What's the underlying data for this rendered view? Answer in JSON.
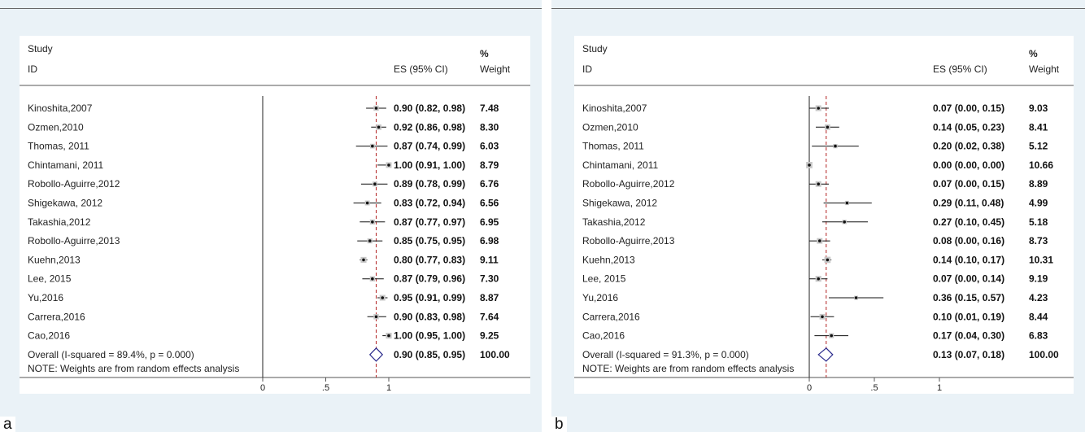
{
  "chart_data": [
    {
      "type": "forest",
      "panel_label": "a",
      "header": {
        "study": "Study",
        "id": "ID",
        "es": "ES (95% CI)",
        "pct": "%",
        "weight": "Weight"
      },
      "note": "NOTE: Weights are from random effects analysis",
      "x_ticks": [
        "0",
        ".5",
        "1"
      ],
      "xlim": [
        -0.6,
        1.0
      ],
      "reference_x": 0,
      "pooled_line_x": 0.9,
      "studies": [
        {
          "label": "Kinoshita,2007",
          "es": 0.9,
          "lo": 0.82,
          "hi": 0.98,
          "text": "0.90 (0.82, 0.98)",
          "weight": "7.48"
        },
        {
          "label": "Ozmen,2010",
          "es": 0.92,
          "lo": 0.86,
          "hi": 0.98,
          "text": "0.92 (0.86, 0.98)",
          "weight": "8.30"
        },
        {
          "label": "Thomas, 2011",
          "es": 0.87,
          "lo": 0.74,
          "hi": 0.99,
          "text": "0.87 (0.74, 0.99)",
          "weight": "6.03"
        },
        {
          "label": "Chintamani, 2011",
          "es": 1.0,
          "lo": 0.91,
          "hi": 1.0,
          "text": "1.00 (0.91, 1.00)",
          "weight": "8.79"
        },
        {
          "label": "Robollo-Aguirre,2012",
          "es": 0.89,
          "lo": 0.78,
          "hi": 0.99,
          "text": "0.89 (0.78, 0.99)",
          "weight": "6.76"
        },
        {
          "label": "Shigekawa, 2012",
          "es": 0.83,
          "lo": 0.72,
          "hi": 0.94,
          "text": "0.83 (0.72, 0.94)",
          "weight": "6.56"
        },
        {
          "label": "Takashia,2012",
          "es": 0.87,
          "lo": 0.77,
          "hi": 0.97,
          "text": "0.87 (0.77, 0.97)",
          "weight": "6.95"
        },
        {
          "label": "Robollo-Aguirre,2013",
          "es": 0.85,
          "lo": 0.75,
          "hi": 0.95,
          "text": "0.85 (0.75, 0.95)",
          "weight": "6.98"
        },
        {
          "label": "Kuehn,2013",
          "es": 0.8,
          "lo": 0.77,
          "hi": 0.83,
          "text": "0.80 (0.77, 0.83)",
          "weight": "9.11"
        },
        {
          "label": "Lee, 2015",
          "es": 0.87,
          "lo": 0.79,
          "hi": 0.96,
          "text": "0.87 (0.79, 0.96)",
          "weight": "7.30"
        },
        {
          "label": "Yu,2016",
          "es": 0.95,
          "lo": 0.91,
          "hi": 0.99,
          "text": "0.95 (0.91, 0.99)",
          "weight": "8.87"
        },
        {
          "label": "Carrera,2016",
          "es": 0.9,
          "lo": 0.83,
          "hi": 0.98,
          "text": "0.90 (0.83, 0.98)",
          "weight": "7.64"
        },
        {
          "label": "Cao,2016",
          "es": 1.0,
          "lo": 0.95,
          "hi": 1.0,
          "text": "1.00 (0.95, 1.00)",
          "weight": "9.25"
        }
      ],
      "overall": {
        "label": "Overall  (I-squared = 89.4%, p = 0.000)",
        "es": 0.9,
        "lo": 0.85,
        "hi": 0.95,
        "text": "0.90 (0.85, 0.95)",
        "weight": "100.00"
      }
    },
    {
      "type": "forest",
      "panel_label": "b",
      "header": {
        "study": "Study",
        "id": "ID",
        "es": "ES (95% CI)",
        "pct": "%",
        "weight": "Weight"
      },
      "note": "NOTE: Weights are from random effects analysis",
      "x_ticks": [
        "0",
        ".5",
        "1"
      ],
      "xlim": [
        -0.6,
        1.0
      ],
      "reference_x": 0,
      "pooled_line_x": 0.13,
      "studies": [
        {
          "label": "Kinoshita,2007",
          "es": 0.07,
          "lo": 0.0,
          "hi": 0.15,
          "text": "0.07 (0.00, 0.15)",
          "weight": "9.03"
        },
        {
          "label": "Ozmen,2010",
          "es": 0.14,
          "lo": 0.05,
          "hi": 0.23,
          "text": "0.14 (0.05, 0.23)",
          "weight": "8.41"
        },
        {
          "label": "Thomas, 2011",
          "es": 0.2,
          "lo": 0.02,
          "hi": 0.38,
          "text": "0.20 (0.02, 0.38)",
          "weight": "5.12"
        },
        {
          "label": "Chintamani, 2011",
          "es": 0.0,
          "lo": 0.0,
          "hi": 0.0,
          "text": "0.00 (0.00, 0.00)",
          "weight": "10.66"
        },
        {
          "label": "Robollo-Aguirre,2012",
          "es": 0.07,
          "lo": 0.0,
          "hi": 0.15,
          "text": "0.07 (0.00, 0.15)",
          "weight": "8.89"
        },
        {
          "label": "Shigekawa, 2012",
          "es": 0.29,
          "lo": 0.11,
          "hi": 0.48,
          "text": "0.29 (0.11, 0.48)",
          "weight": "4.99"
        },
        {
          "label": "Takashia,2012",
          "es": 0.27,
          "lo": 0.1,
          "hi": 0.45,
          "text": "0.27 (0.10, 0.45)",
          "weight": "5.18"
        },
        {
          "label": "Robollo-Aguirre,2013",
          "es": 0.08,
          "lo": 0.0,
          "hi": 0.16,
          "text": "0.08 (0.00, 0.16)",
          "weight": "8.73"
        },
        {
          "label": "Kuehn,2013",
          "es": 0.14,
          "lo": 0.1,
          "hi": 0.17,
          "text": "0.14 (0.10, 0.17)",
          "weight": "10.31"
        },
        {
          "label": "Lee, 2015",
          "es": 0.07,
          "lo": 0.0,
          "hi": 0.14,
          "text": "0.07 (0.00, 0.14)",
          "weight": "9.19"
        },
        {
          "label": "Yu,2016",
          "es": 0.36,
          "lo": 0.15,
          "hi": 0.57,
          "text": "0.36 (0.15, 0.57)",
          "weight": "4.23"
        },
        {
          "label": "Carrera,2016",
          "es": 0.1,
          "lo": 0.01,
          "hi": 0.19,
          "text": "0.10 (0.01, 0.19)",
          "weight": "8.44"
        },
        {
          "label": "Cao,2016",
          "es": 0.17,
          "lo": 0.04,
          "hi": 0.3,
          "text": "0.17 (0.04, 0.30)",
          "weight": "6.83"
        }
      ],
      "overall": {
        "label": "Overall  (I-squared = 91.3%, p = 0.000)",
        "es": 0.13,
        "lo": 0.07,
        "hi": 0.18,
        "text": "0.13 (0.07, 0.18)",
        "weight": "100.00"
      }
    }
  ]
}
